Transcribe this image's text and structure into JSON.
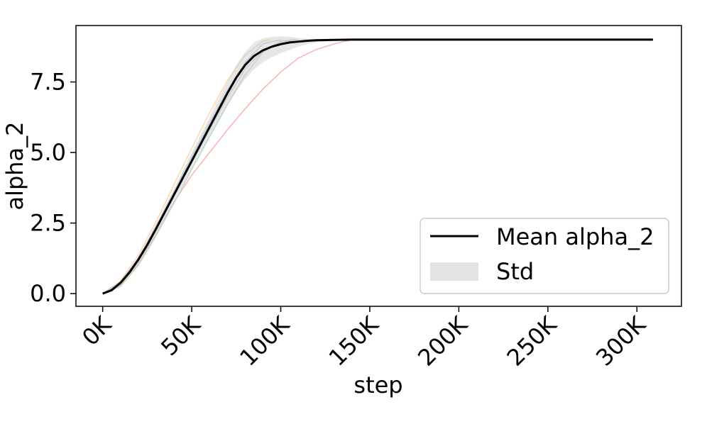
{
  "chart_data": {
    "type": "line",
    "xlabel": "step",
    "ylabel": "alpha_2",
    "xlim": [
      -15000,
      325000
    ],
    "ylim": [
      -0.45,
      9.5
    ],
    "x_ticks": [
      0,
      50000,
      100000,
      150000,
      200000,
      250000,
      300000
    ],
    "x_tick_labels": [
      "0K",
      "50K",
      "100K",
      "150K",
      "200K",
      "250K",
      "300K"
    ],
    "y_ticks": [
      0,
      2.5,
      5,
      7.5
    ],
    "y_tick_labels": [
      "0.0",
      "2.5",
      "5.0",
      "7.5"
    ],
    "grid": false,
    "legend_placement": "lower-right",
    "legend": {
      "mean_label": "Mean alpha_2",
      "std_label": "Std"
    },
    "colors": {
      "mean": "#000000",
      "std_band": "#e0e0e0"
    },
    "mean": {
      "name": "Mean alpha_2",
      "x": [
        0,
        5000,
        10000,
        15000,
        20000,
        25000,
        30000,
        35000,
        40000,
        45000,
        50000,
        55000,
        60000,
        65000,
        70000,
        75000,
        80000,
        85000,
        90000,
        95000,
        100000,
        105000,
        110000,
        115000,
        120000,
        130000,
        140000,
        150000,
        200000,
        250000,
        300000,
        309000
      ],
      "y": [
        0,
        0.12,
        0.38,
        0.75,
        1.2,
        1.72,
        2.3,
        2.9,
        3.5,
        4.1,
        4.7,
        5.3,
        5.9,
        6.5,
        7.1,
        7.65,
        8.1,
        8.42,
        8.62,
        8.75,
        8.84,
        8.9,
        8.93,
        8.96,
        8.98,
        8.99,
        9.0,
        9.0,
        9.0,
        9.0,
        9.0,
        9.0
      ]
    },
    "std": {
      "name": "Std",
      "x": [
        0,
        5000,
        10000,
        15000,
        20000,
        25000,
        30000,
        35000,
        40000,
        45000,
        50000,
        55000,
        60000,
        65000,
        70000,
        75000,
        80000,
        85000,
        90000,
        95000,
        100000,
        105000,
        110000,
        115000,
        120000,
        130000,
        140000
      ],
      "lower": [
        0,
        0.1,
        0.33,
        0.68,
        1.1,
        1.6,
        2.15,
        2.72,
        3.3,
        3.85,
        4.42,
        5.0,
        5.55,
        6.1,
        6.65,
        7.15,
        7.6,
        7.95,
        8.2,
        8.38,
        8.52,
        8.64,
        8.75,
        8.84,
        8.9,
        8.97,
        9.0
      ],
      "upper": [
        0,
        0.14,
        0.43,
        0.83,
        1.3,
        1.85,
        2.45,
        3.08,
        3.7,
        4.35,
        5.0,
        5.62,
        6.25,
        6.88,
        7.5,
        8.1,
        8.55,
        8.9,
        9.05,
        9.1,
        9.12,
        9.1,
        9.06,
        9.03,
        9.01,
        9.0,
        9.0
      ]
    },
    "runs": [
      {
        "color": "#f4a9a8",
        "x": [
          0,
          10000,
          20000,
          30000,
          40000,
          50000,
          60000,
          70000,
          80000,
          90000,
          100000,
          110000,
          120000,
          130000,
          140000
        ],
        "y": [
          0,
          0.3,
          1.05,
          2.1,
          3.25,
          4.2,
          5.0,
          5.8,
          6.55,
          7.25,
          7.85,
          8.35,
          8.65,
          8.85,
          9.0
        ]
      },
      {
        "color": "#fbd3a5",
        "x": [
          0,
          10000,
          20000,
          30000,
          40000,
          50000,
          60000,
          70000,
          80000,
          90000,
          95000
        ],
        "y": [
          0,
          0.45,
          1.35,
          2.55,
          3.85,
          5.15,
          6.4,
          7.55,
          8.45,
          8.95,
          9.0
        ]
      },
      {
        "color": "#b8c9ec",
        "x": [
          0,
          10000,
          20000,
          30000,
          40000,
          50000,
          60000,
          70000,
          80000,
          90000,
          100000
        ],
        "y": [
          0,
          0.4,
          1.25,
          2.4,
          3.6,
          4.85,
          6.05,
          7.2,
          8.2,
          8.85,
          9.0
        ]
      },
      {
        "color": "#a9dfbf",
        "x": [
          0,
          10000,
          20000,
          30000,
          40000,
          50000,
          60000,
          70000,
          80000,
          90000,
          100000,
          108000
        ],
        "y": [
          0,
          0.25,
          1.0,
          2.05,
          3.2,
          4.4,
          5.55,
          6.7,
          7.75,
          8.55,
          8.95,
          9.0
        ]
      },
      {
        "color": "#d7c4e6",
        "x": [
          0,
          10000,
          20000,
          30000,
          40000,
          50000,
          60000,
          70000,
          80000,
          90000,
          100000,
          110000
        ],
        "y": [
          0,
          0.35,
          1.15,
          2.25,
          3.45,
          4.65,
          5.8,
          6.95,
          7.95,
          8.6,
          8.92,
          9.0
        ]
      }
    ]
  }
}
